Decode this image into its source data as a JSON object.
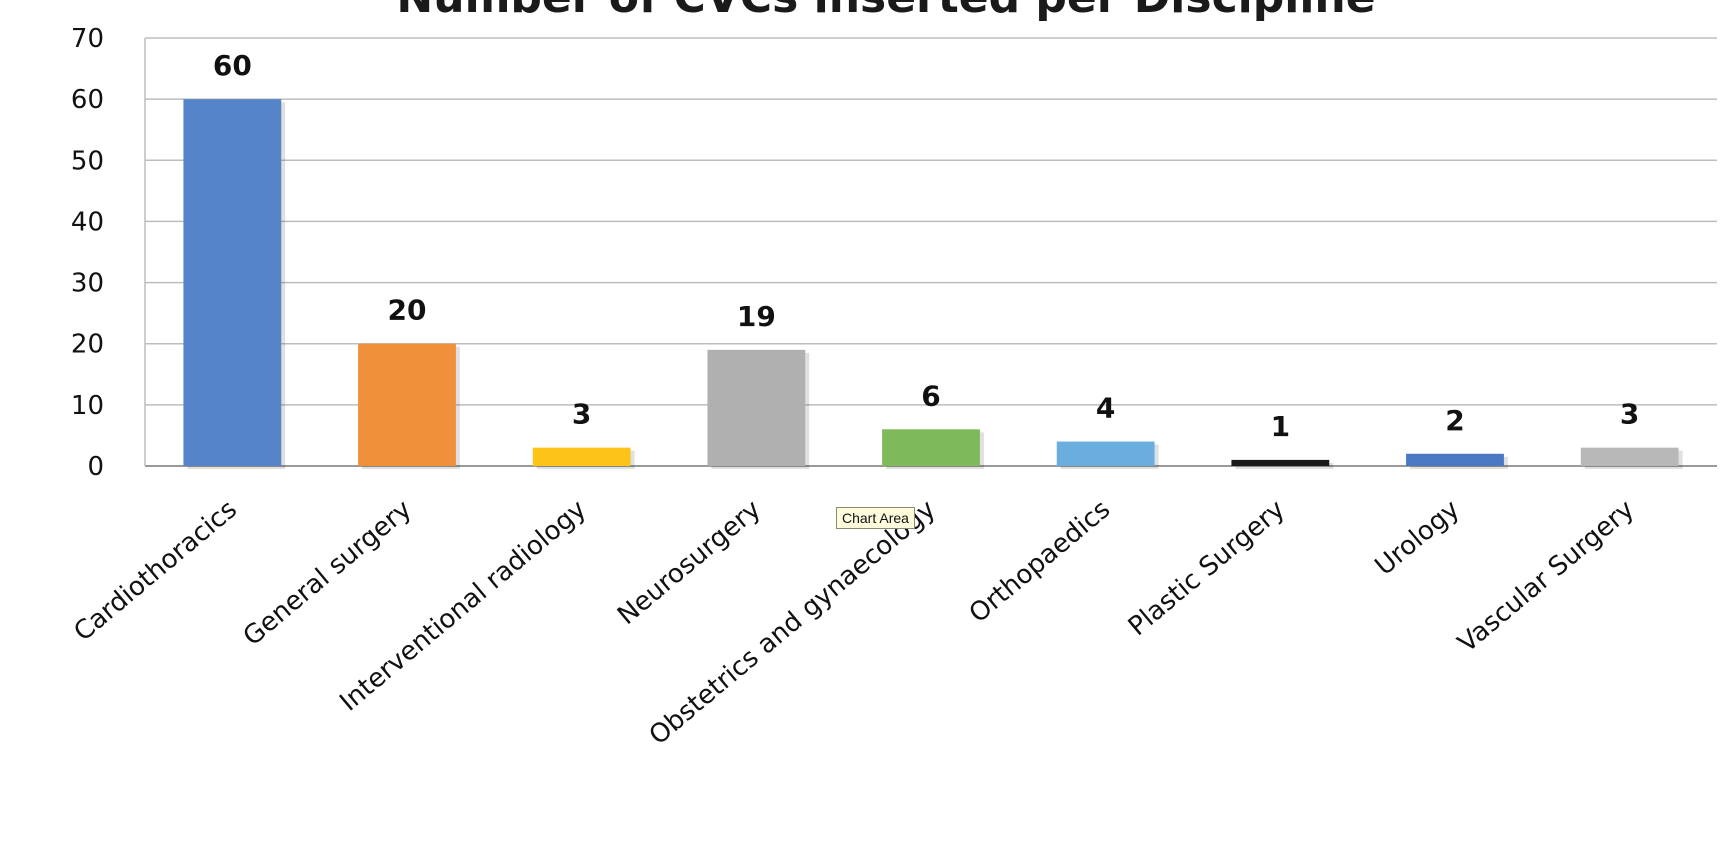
{
  "chart_data": {
    "type": "bar",
    "title": "Number of CVCs inserted per Discipline",
    "categories": [
      "Cardiothoracics",
      "General surgery",
      "Interventional radiology",
      "Neurosurgery",
      "Obstetrics and gynaecology",
      "Orthopaedics",
      "Plastic Surgery",
      "Urology",
      "Vascular Surgery"
    ],
    "values": [
      60,
      20,
      3,
      19,
      6,
      4,
      1,
      2,
      3
    ],
    "colors": [
      "#5585c8",
      "#f0903a",
      "#fcc419",
      "#b0b0b0",
      "#7eb95a",
      "#6aaee0",
      "#1a1a1a",
      "#4a78c2",
      "#b8b8b8"
    ],
    "ylim": [
      0,
      70
    ],
    "yticks": [
      0,
      10,
      20,
      30,
      40,
      50,
      60,
      70
    ],
    "grid": true,
    "legend": "none",
    "data_labels": true
  },
  "tooltip": {
    "text": "Chart Area"
  }
}
